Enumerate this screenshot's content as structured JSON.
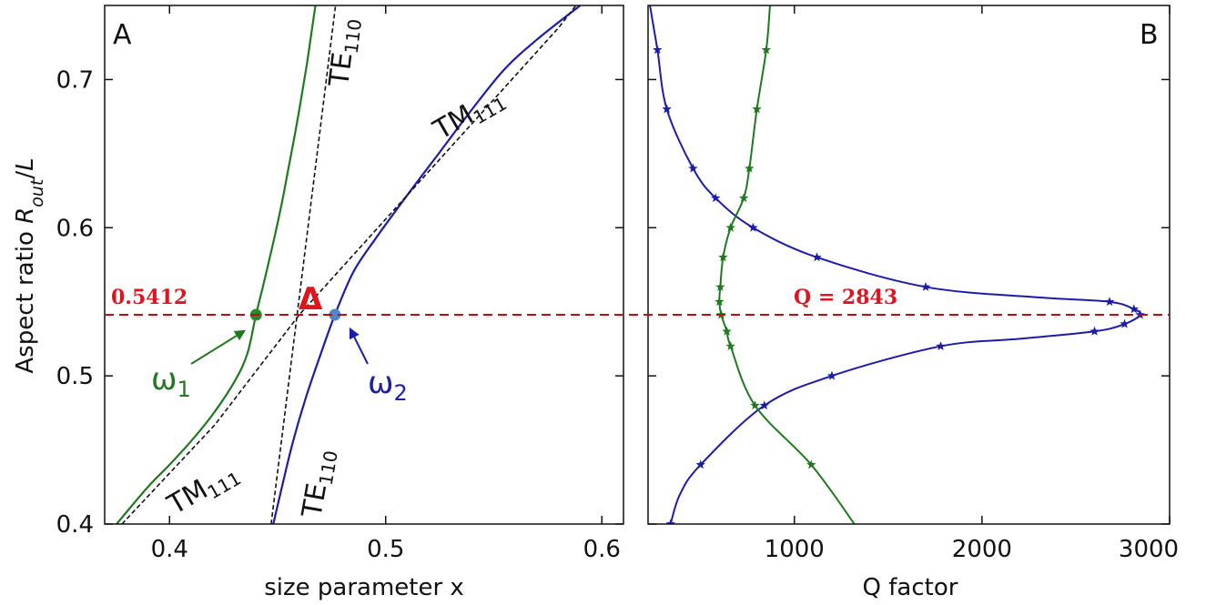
{
  "colors": {
    "green": "#1f7a1f",
    "blue": "#1c1caa",
    "red_line": "#b80f0f",
    "red_text": "#e0141c",
    "dashed": "#111111",
    "dot_green": "#2a8a2a",
    "dot_blue": "#4f86c6"
  },
  "chart_data": [
    {
      "type": "line",
      "panel_label": "A",
      "xlabel": "size parameter x",
      "ylabel_main": "Aspect ratio ",
      "ylabel_italic": "R",
      "ylabel_sub": "out",
      "ylabel_tail": "/",
      "ylabel_tail_italic": "L",
      "xlim": [
        0.37,
        0.61
      ],
      "ylim": [
        0.4,
        0.75
      ],
      "xticks": [
        0.4,
        0.5,
        0.6
      ],
      "xtick_labels": [
        "0.4",
        "0.5",
        "0.6"
      ],
      "yticks": [
        0.4,
        0.5,
        0.6,
        0.7
      ],
      "ytick_labels": [
        "0.4",
        "0.5",
        "0.6",
        "0.7"
      ],
      "series": [
        {
          "key": "omega1",
          "name": "ω",
          "name_sub": "1",
          "style": "solid",
          "color": "green",
          "x": [
            0.3755,
            0.39,
            0.4,
            0.41,
            0.42,
            0.43,
            0.436,
            0.44,
            0.444,
            0.448,
            0.452,
            0.455,
            0.458,
            0.461,
            0.4635,
            0.4655,
            0.4675
          ],
          "y": [
            0.4,
            0.425,
            0.44,
            0.456,
            0.474,
            0.496,
            0.515,
            0.5412,
            0.565,
            0.59,
            0.617,
            0.64,
            0.663,
            0.688,
            0.71,
            0.73,
            0.75
          ]
        },
        {
          "key": "omega2",
          "name": "ω",
          "name_sub": "2",
          "style": "solid",
          "color": "blue",
          "x": [
            0.448,
            0.452,
            0.457,
            0.463,
            0.47,
            0.4765,
            0.485,
            0.495,
            0.51,
            0.525,
            0.54,
            0.555,
            0.57,
            0.59
          ],
          "y": [
            0.4,
            0.425,
            0.455,
            0.485,
            0.515,
            0.5412,
            0.57,
            0.592,
            0.622,
            0.651,
            0.68,
            0.707,
            0.727,
            0.75
          ]
        },
        {
          "key": "te110",
          "name": "TE",
          "name_sub": "110",
          "style": "dashed",
          "color": "dashed",
          "x": [
            0.447,
            0.4768
          ],
          "y": [
            0.4,
            0.75
          ]
        },
        {
          "key": "tm111",
          "name": "TM",
          "name_sub": "111",
          "style": "dashed",
          "color": "dashed",
          "x": [
            0.378,
            0.421,
            0.46,
            0.58,
            0.588
          ],
          "y": [
            0.4,
            0.467,
            0.5412,
            0.735,
            0.75
          ]
        }
      ],
      "points": [
        {
          "name": "omega1-point",
          "x": 0.44,
          "y": 0.5412,
          "color": "dot_green"
        },
        {
          "name": "omega2-point",
          "x": 0.4765,
          "y": 0.5412,
          "color": "dot_blue"
        }
      ],
      "annotations": {
        "ratio_value": "0.5412",
        "delta": "Δ",
        "omega1_label": "ω",
        "omega1_sub": "1",
        "omega2_label": "ω",
        "omega2_sub": "2",
        "te_upper": "TE",
        "te_upper_sub": "110",
        "tm_upper": "TM",
        "tm_upper_sub": "111",
        "te_lower": "TE",
        "te_lower_sub": "110",
        "tm_lower": "TM",
        "tm_lower_sub": "111"
      },
      "hline": 0.5412
    },
    {
      "type": "line",
      "panel_label": "B",
      "xlabel": "Q factor",
      "xlim": [
        220,
        3000
      ],
      "ylim": [
        0.4,
        0.75
      ],
      "xticks": [
        1000,
        2000,
        3000
      ],
      "xtick_labels": [
        "1000",
        "2000",
        "3000"
      ],
      "series": [
        {
          "key": "q_blue",
          "color": "blue",
          "markers": [
            {
              "x": 270,
              "y": 0.72
            },
            {
              "x": 320,
              "y": 0.68
            },
            {
              "x": 460,
              "y": 0.64
            },
            {
              "x": 580,
              "y": 0.62
            },
            {
              "x": 780,
              "y": 0.6
            },
            {
              "x": 1120,
              "y": 0.58
            },
            {
              "x": 1700,
              "y": 0.56
            },
            {
              "x": 2680,
              "y": 0.55
            },
            {
              "x": 2810,
              "y": 0.545
            },
            {
              "x": 2843,
              "y": 0.5412
            },
            {
              "x": 2760,
              "y": 0.535
            },
            {
              "x": 2600,
              "y": 0.53
            },
            {
              "x": 1780,
              "y": 0.52
            },
            {
              "x": 1200,
              "y": 0.5
            },
            {
              "x": 840,
              "y": 0.48
            },
            {
              "x": 500,
              "y": 0.44
            },
            {
              "x": 340,
              "y": 0.4
            }
          ],
          "curve": [
            {
              "x": 230,
              "y": 0.75
            },
            {
              "x": 270,
              "y": 0.72
            },
            {
              "x": 320,
              "y": 0.68
            },
            {
              "x": 460,
              "y": 0.64
            },
            {
              "x": 580,
              "y": 0.62
            },
            {
              "x": 780,
              "y": 0.6
            },
            {
              "x": 1120,
              "y": 0.58
            },
            {
              "x": 1700,
              "y": 0.56
            },
            {
              "x": 2300,
              "y": 0.553
            },
            {
              "x": 2680,
              "y": 0.55
            },
            {
              "x": 2810,
              "y": 0.545
            },
            {
              "x": 2843,
              "y": 0.5412
            },
            {
              "x": 2760,
              "y": 0.535
            },
            {
              "x": 2600,
              "y": 0.53
            },
            {
              "x": 2200,
              "y": 0.525
            },
            {
              "x": 1780,
              "y": 0.52
            },
            {
              "x": 1200,
              "y": 0.5
            },
            {
              "x": 840,
              "y": 0.48
            },
            {
              "x": 500,
              "y": 0.44
            },
            {
              "x": 390,
              "y": 0.42
            },
            {
              "x": 340,
              "y": 0.4
            }
          ]
        },
        {
          "key": "q_green",
          "color": "green",
          "markers": [
            {
              "x": 850,
              "y": 0.72
            },
            {
              "x": 800,
              "y": 0.68
            },
            {
              "x": 760,
              "y": 0.64
            },
            {
              "x": 730,
              "y": 0.62
            },
            {
              "x": 660,
              "y": 0.6
            },
            {
              "x": 620,
              "y": 0.58
            },
            {
              "x": 605,
              "y": 0.56
            },
            {
              "x": 600,
              "y": 0.55
            },
            {
              "x": 610,
              "y": 0.5412
            },
            {
              "x": 640,
              "y": 0.53
            },
            {
              "x": 660,
              "y": 0.52
            },
            {
              "x": 790,
              "y": 0.48
            },
            {
              "x": 1090,
              "y": 0.44
            }
          ],
          "curve": [
            {
              "x": 870,
              "y": 0.75
            },
            {
              "x": 850,
              "y": 0.72
            },
            {
              "x": 800,
              "y": 0.68
            },
            {
              "x": 760,
              "y": 0.64
            },
            {
              "x": 730,
              "y": 0.62
            },
            {
              "x": 660,
              "y": 0.6
            },
            {
              "x": 620,
              "y": 0.58
            },
            {
              "x": 605,
              "y": 0.56
            },
            {
              "x": 600,
              "y": 0.55
            },
            {
              "x": 610,
              "y": 0.5412
            },
            {
              "x": 640,
              "y": 0.53
            },
            {
              "x": 660,
              "y": 0.52
            },
            {
              "x": 790,
              "y": 0.48
            },
            {
              "x": 1090,
              "y": 0.44
            },
            {
              "x": 1320,
              "y": 0.4
            }
          ]
        }
      ],
      "annotations": {
        "q_value": "Q = 2843"
      },
      "hline": 0.5412
    }
  ]
}
